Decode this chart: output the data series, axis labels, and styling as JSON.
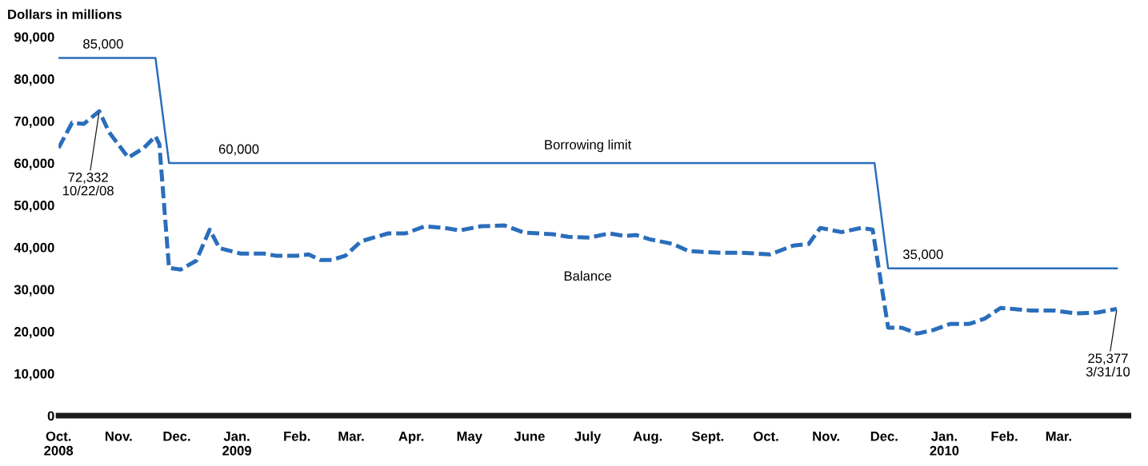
{
  "chart_data": {
    "type": "line",
    "ylabel": "Dollars in millions",
    "xlim": [
      "2008-10-01",
      "2010-04-06"
    ],
    "ylim": [
      0,
      90000
    ],
    "yticks": [
      0,
      {
        "value": 10000,
        "label": "10,000"
      },
      {
        "value": 20000,
        "label": "20,000"
      },
      {
        "value": 30000,
        "label": "30,000"
      },
      {
        "value": 40000,
        "label": "40,000"
      },
      {
        "value": 50000,
        "label": "50,000"
      },
      {
        "value": 60000,
        "label": "60,000"
      },
      {
        "value": 70000,
        "label": "70,000"
      },
      {
        "value": 80000,
        "label": "80,000"
      },
      {
        "value": 90000,
        "label": "90,000"
      }
    ],
    "xticks": [
      {
        "value": "2008-10-01",
        "label": "Oct.\n2008"
      },
      {
        "value": "2008-11-01",
        "label": "Nov."
      },
      {
        "value": "2008-12-01",
        "label": "Dec."
      },
      {
        "value": "2009-01-01",
        "label": "Jan.\n2009"
      },
      {
        "value": "2009-02-01",
        "label": "Feb."
      },
      {
        "value": "2009-03-01",
        "label": "Mar."
      },
      {
        "value": "2009-04-01",
        "label": "Apr."
      },
      {
        "value": "2009-05-01",
        "label": "May"
      },
      {
        "value": "2009-06-01",
        "label": "June"
      },
      {
        "value": "2009-07-01",
        "label": "July"
      },
      {
        "value": "2009-08-01",
        "label": "Aug."
      },
      {
        "value": "2009-09-01",
        "label": "Sept."
      },
      {
        "value": "2009-10-01",
        "label": "Oct."
      },
      {
        "value": "2009-11-01",
        "label": "Nov."
      },
      {
        "value": "2009-12-01",
        "label": "Dec."
      },
      {
        "value": "2010-01-01",
        "label": "Jan.\n2010"
      },
      {
        "value": "2010-02-01",
        "label": "Feb."
      },
      {
        "value": "2010-03-01",
        "label": "Mar."
      }
    ],
    "grid": false,
    "marker": "none",
    "series": [
      {
        "name": "Borrowing limit",
        "color": "#2a6ebb",
        "line_style": "solid",
        "x": [
          "2008-10-01",
          "2008-11-20",
          "2008-11-27",
          "2009-11-26",
          "2009-12-03",
          "2010-03-31"
        ],
        "values": [
          85000,
          85000,
          60000,
          60000,
          35000,
          35000
        ]
      },
      {
        "name": "Balance",
        "color": "#2a6ebb",
        "line_style": "dashed",
        "x": [
          "2008-10-01",
          "2008-10-08",
          "2008-10-14",
          "2008-10-22",
          "2008-10-27",
          "2008-11-06",
          "2008-11-14",
          "2008-11-20",
          "2008-11-22",
          "2008-11-27",
          "2008-12-03",
          "2008-12-11",
          "2008-12-18",
          "2008-12-23",
          "2009-01-03",
          "2009-01-15",
          "2009-01-21",
          "2009-02-01",
          "2009-02-07",
          "2009-02-13",
          "2009-02-19",
          "2009-02-26",
          "2009-03-06",
          "2009-03-14",
          "2009-03-20",
          "2009-03-29",
          "2009-04-08",
          "2009-04-18",
          "2009-04-26",
          "2009-05-07",
          "2009-05-19",
          "2009-05-29",
          "2009-06-13",
          "2009-06-21",
          "2009-07-02",
          "2009-07-12",
          "2009-07-20",
          "2009-07-26",
          "2009-08-02",
          "2009-08-14",
          "2009-08-22",
          "2009-08-30",
          "2009-09-08",
          "2009-09-18",
          "2009-09-26",
          "2009-10-03",
          "2009-10-15",
          "2009-10-23",
          "2009-10-29",
          "2009-11-09",
          "2009-11-19",
          "2009-11-25",
          "2009-12-03",
          "2009-12-10",
          "2009-12-18",
          "2009-12-26",
          "2010-01-04",
          "2010-01-14",
          "2010-01-22",
          "2010-01-30",
          "2010-02-14",
          "2010-02-26",
          "2010-03-10",
          "2010-03-21",
          "2010-03-31"
        ],
        "values": [
          63600,
          69600,
          69300,
          72332,
          67400,
          61300,
          63600,
          66400,
          64500,
          35100,
          34700,
          36800,
          44200,
          39800,
          38500,
          38500,
          38000,
          38000,
          38300,
          37000,
          37000,
          38000,
          41400,
          42500,
          43300,
          43300,
          45000,
          44600,
          44000,
          45000,
          45200,
          43500,
          43100,
          42500,
          42300,
          43300,
          42700,
          42900,
          41900,
          40800,
          39100,
          38900,
          38700,
          38700,
          38500,
          38300,
          40400,
          40800,
          44600,
          43600,
          44600,
          44200,
          20900,
          20900,
          19500,
          20300,
          21800,
          21800,
          23100,
          25600,
          25000,
          25000,
          24300,
          24500,
          25377
        ]
      }
    ],
    "annotations": [
      {
        "text": "85,000",
        "x": "2008-10-24",
        "y": 85000
      },
      {
        "text": "60,000",
        "x": "2009-01-02",
        "y": 60000
      },
      {
        "text": "35,000",
        "x": "2009-12-21",
        "y": 35000
      },
      {
        "text": "72,332\n10/22/08",
        "x": "2008-10-22",
        "y": 72332
      },
      {
        "text": "25,377\n3/31/10",
        "x": "2010-03-31",
        "y": 25377
      }
    ]
  }
}
